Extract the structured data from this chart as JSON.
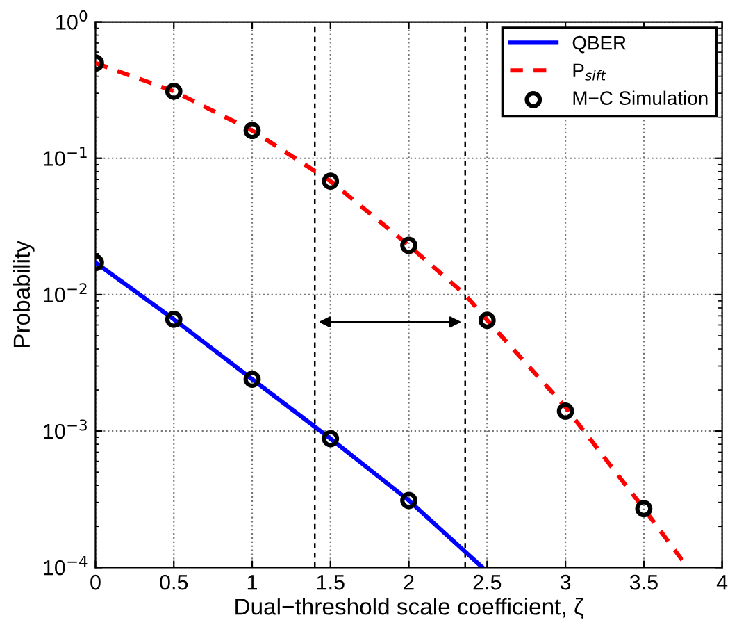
{
  "chart_data": {
    "type": "line",
    "xlabel": "Dual−threshold scale coefficient, ζ",
    "ylabel": "Probability",
    "series": [
      {
        "name": "QBER",
        "color": "#0000ff",
        "line_style": "solid",
        "marker": "none",
        "x": [
          0,
          0.5,
          1,
          1.5,
          2,
          2.47
        ],
        "values": [
          0.0172,
          0.0066,
          0.0024,
          0.00088,
          0.00031,
          0.0001
        ]
      },
      {
        "name": "P$_{sift}$",
        "color": "#ff0000",
        "line_style": "dashed",
        "marker": "none",
        "x": [
          0,
          0.5,
          1,
          1.5,
          2,
          2.36,
          2.5,
          3,
          3.5,
          3.78
        ],
        "values": [
          0.5,
          0.31,
          0.16,
          0.068,
          0.023,
          0.01,
          0.0065,
          0.0015,
          0.00027,
          0.0001
        ]
      },
      {
        "name": "M−C Simulation",
        "type": "scatter",
        "color": "#000000",
        "marker": "circle",
        "x": [
          0,
          0.5,
          1,
          1.5,
          2,
          0,
          0.5,
          1,
          1.5,
          2,
          2.5,
          3,
          3.5
        ],
        "values": [
          0.0172,
          0.0066,
          0.0024,
          0.00088,
          0.00031,
          0.5,
          0.31,
          0.16,
          0.068,
          0.023,
          0.0065,
          0.0014,
          0.00027
        ]
      }
    ],
    "ref_lines": [
      {
        "axis": "x",
        "value": 1.4,
        "color": "#000000",
        "line_style": "dashed"
      },
      {
        "axis": "x",
        "value": 2.36,
        "color": "#000000",
        "line_style": "dashed"
      }
    ],
    "log": "y",
    "xlim": [
      0,
      4
    ],
    "xticks": [
      0,
      0.5,
      1,
      1.5,
      2,
      2.5,
      3,
      3.5,
      4
    ],
    "ylim": [
      0.0001,
      1
    ],
    "yticks": [
      {
        "value": 0.0001,
        "label": "10$^{−4}$"
      },
      {
        "value": 0.001,
        "label": "10$^{−3}$"
      },
      {
        "value": 0.01,
        "label": "10$^{−2}$"
      },
      {
        "value": 0.1,
        "label": "10$^{−1}$"
      },
      {
        "value": 1,
        "label": "10$^{0}$"
      }
    ],
    "grid": true,
    "legend": "top right"
  }
}
